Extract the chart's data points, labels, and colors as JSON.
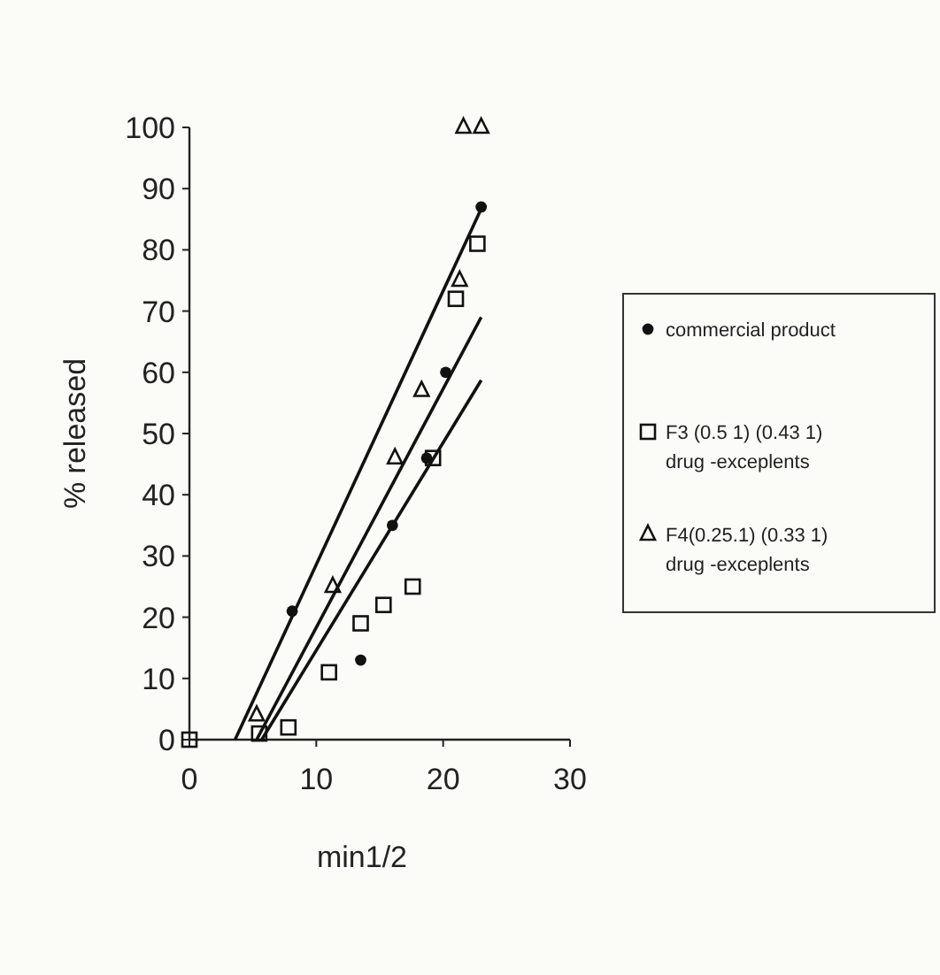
{
  "chart_data": {
    "type": "scatter",
    "xlabel": "min1/2",
    "ylabel": "% released",
    "xlim": [
      0,
      30
    ],
    "ylim": [
      0,
      100
    ],
    "xticks": [
      0,
      10,
      20,
      30
    ],
    "yticks": [
      0,
      10,
      20,
      30,
      40,
      50,
      60,
      70,
      80,
      90,
      100
    ],
    "grid": false,
    "legend": "right",
    "series": [
      {
        "name": "commercial product",
        "color": "#111111",
        "marker": "circle",
        "x": [
          8.1,
          13.5,
          16,
          18.7,
          20.2,
          23
        ],
        "values": [
          21,
          13,
          35,
          46,
          60,
          87
        ]
      },
      {
        "name": "F3 (0.5 1) (0.43 1) drug -exceplents",
        "color": "#111111",
        "marker": "square",
        "x": [
          0,
          5.5,
          7.8,
          11,
          13.5,
          15.3,
          17.6,
          19.2,
          21,
          22.7
        ],
        "values": [
          0,
          1,
          2,
          11,
          19,
          22,
          25,
          46,
          72,
          81
        ]
      },
      {
        "name": "F4(0.25.1) (0.33 1) drug -exceplents",
        "color": "#111111",
        "marker": "triangle",
        "x": [
          5.3,
          11.3,
          16.2,
          18.3,
          21.3,
          21.6,
          23
        ],
        "values": [
          4,
          25,
          46,
          57,
          75,
          100,
          100
        ]
      },
      {
        "type": "line",
        "color": "#111111",
        "x": [
          3.6,
          23.2
        ],
        "values": [
          0,
          87.6
        ]
      },
      {
        "type": "line",
        "color": "#111111",
        "x": [
          5.3,
          23
        ],
        "values": [
          0,
          69
        ]
      },
      {
        "type": "line",
        "color": "#111111",
        "x": [
          5.7,
          23
        ],
        "values": [
          0,
          58.7
        ]
      }
    ]
  }
}
